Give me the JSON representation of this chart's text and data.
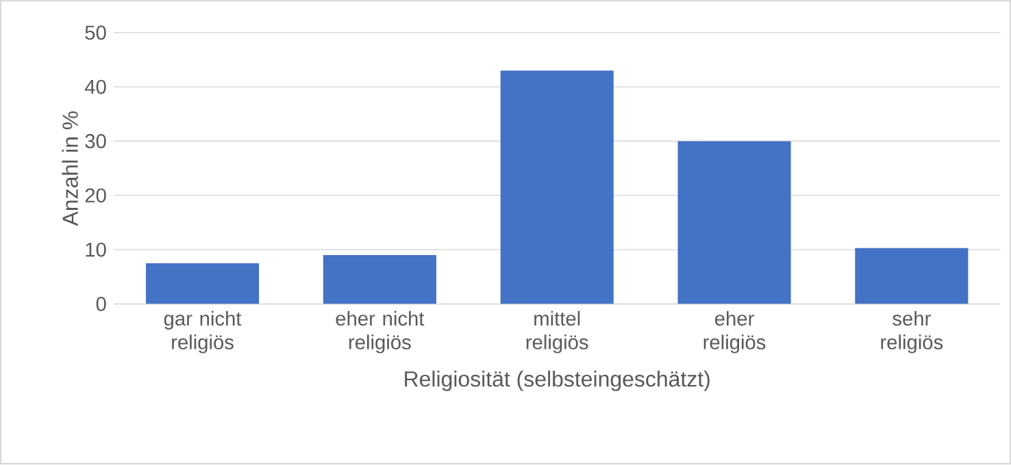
{
  "chart_data": {
    "type": "bar",
    "xlabel": "Religiosität (selbsteingeschätzt)",
    "ylabel": "Anzahl in %",
    "categories": [
      "gar nicht religiös",
      "eher nicht religiös",
      "mittel religiös",
      "eher religiös",
      "sehr religiös"
    ],
    "values": [
      7.5,
      9.0,
      43.0,
      30.0,
      10.3
    ],
    "color": "#4472c4",
    "ylim": [
      0,
      50
    ],
    "yticks": [
      0,
      10,
      20,
      30,
      40,
      50
    ],
    "grid": "y"
  }
}
